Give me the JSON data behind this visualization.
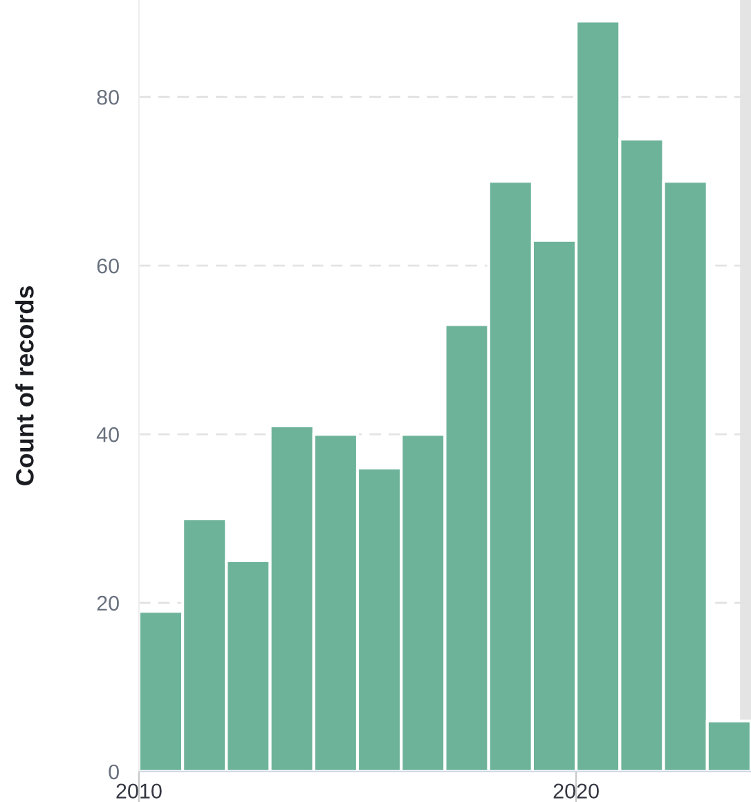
{
  "chart_data": {
    "type": "histogram",
    "ylabel": "Count of records",
    "bins": [
      2010,
      2011,
      2012,
      2013,
      2014,
      2015,
      2016,
      2017,
      2018,
      2019,
      2020,
      2021,
      2022,
      2023,
      2024
    ],
    "values": [
      19,
      30,
      25,
      41,
      40,
      36,
      40,
      53,
      70,
      63,
      89,
      75,
      70,
      6
    ],
    "color": "#6db39a",
    "xlim": [
      2010,
      2024
    ],
    "xticks": [
      2010,
      2020
    ],
    "ylim": [
      0,
      91.5
    ],
    "yticks": [
      0,
      20,
      40,
      60,
      80
    ],
    "bands": [
      {
        "axis": "x",
        "from": 2023.75,
        "to": 2024,
        "color": "#e4e4e4"
      }
    ],
    "grid": "y"
  }
}
